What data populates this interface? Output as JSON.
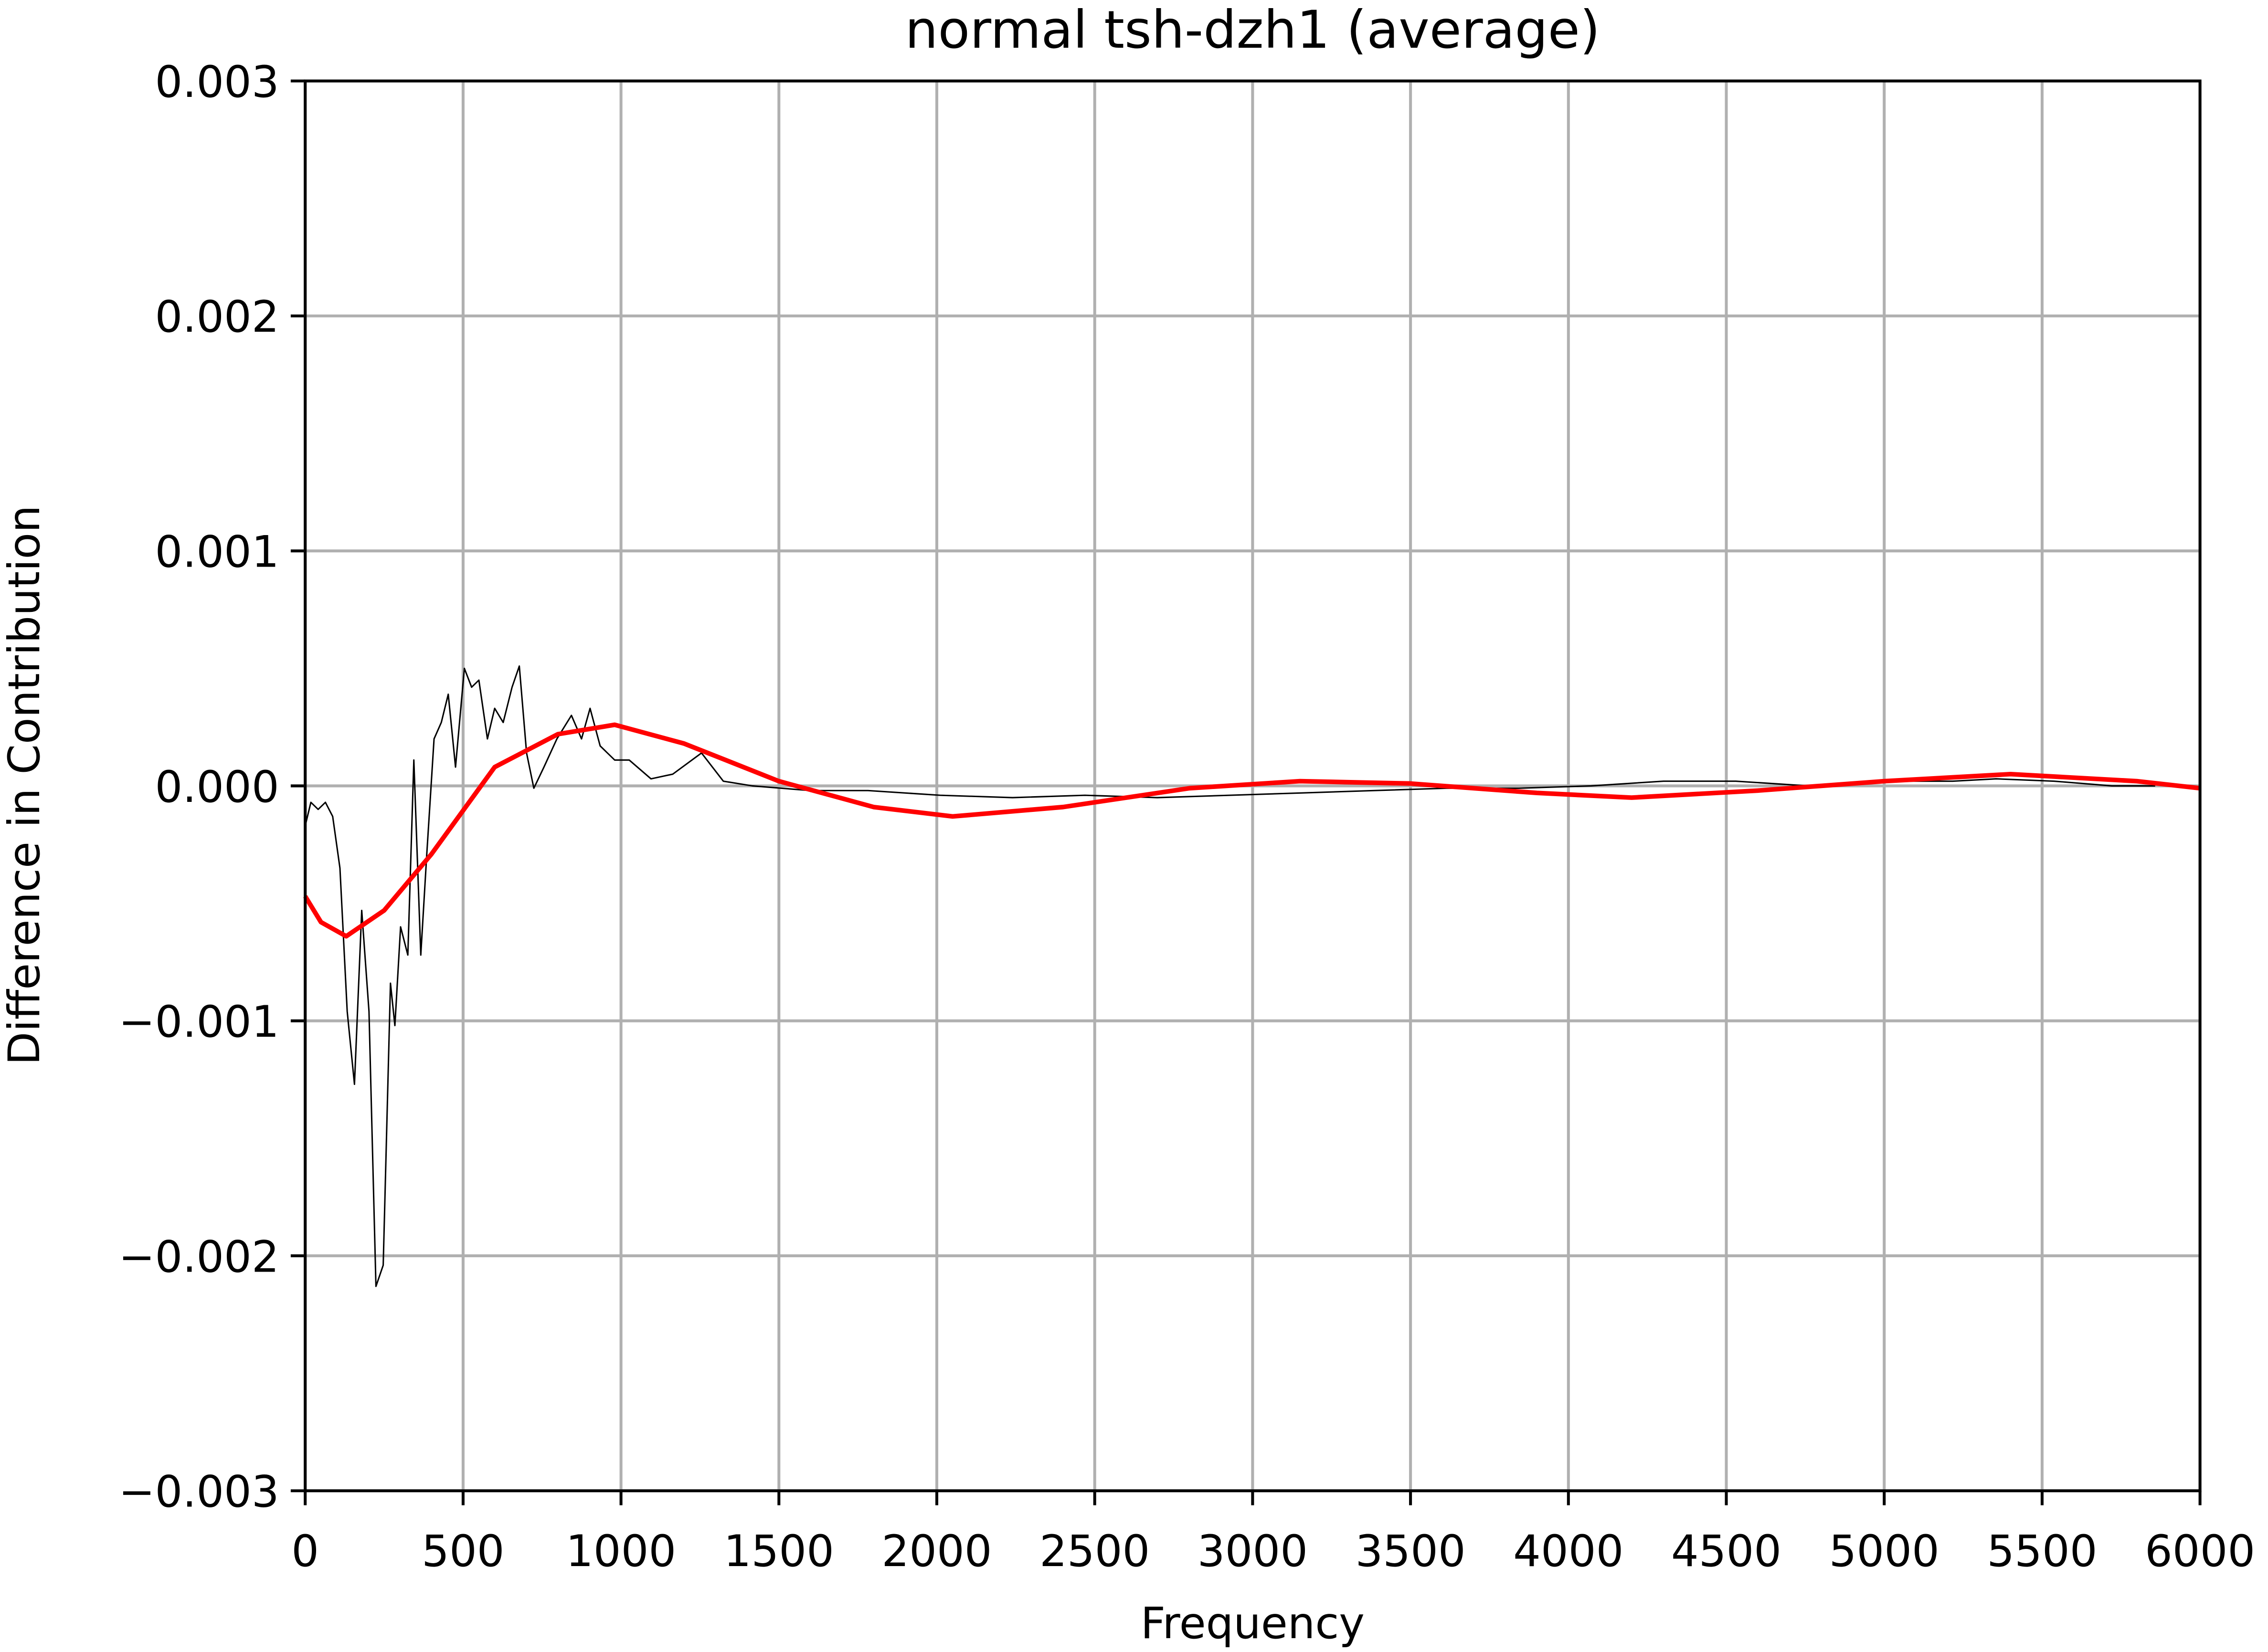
{
  "chart_data": {
    "type": "line",
    "title": "normal tsh-dzh1 (average)",
    "xlabel": "Frequency",
    "ylabel": "Difference in Contribution",
    "xlim": [
      0,
      6000
    ],
    "xticks": [
      0,
      500,
      1000,
      1500,
      2000,
      2500,
      3000,
      3500,
      4000,
      4500,
      5000,
      5500,
      6000
    ],
    "ylim": [
      -0.003,
      0.003
    ],
    "yticks": [
      {
        "value": -0.003,
        "label": "−0.003"
      },
      {
        "value": -0.002,
        "label": "−0.002"
      },
      {
        "value": -0.001,
        "label": "−0.001"
      },
      {
        "value": 0,
        "label": "0.000"
      },
      0.001,
      0.002,
      0.003
    ],
    "grid": true,
    "series": [
      {
        "color": "#000000",
        "line_width": 1,
        "x": [
          0,
          18,
          41,
          64,
          87,
          110,
          133,
          156,
          179,
          202,
          224,
          247,
          270,
          284,
          302,
          325,
          344,
          366,
          385,
          408,
          431,
          453,
          476,
          504,
          527,
          550,
          577,
          600,
          627,
          655,
          678,
          701,
          724,
          756,
          797,
          843,
          875,
          902,
          934,
          980,
          1026,
          1095,
          1164,
          1255,
          1324,
          1416,
          1508,
          1599,
          1782,
          2011,
          2240,
          2469,
          2698,
          2927,
          3156,
          3385,
          3614,
          3843,
          4072,
          4301,
          4530,
          4759,
          4988,
          5217,
          5354,
          5538,
          5721,
          5858
        ],
        "values": [
          -0.00017,
          -7e-05,
          -0.0001,
          -7e-05,
          -0.00013,
          -0.00035,
          -0.00096,
          -0.00127,
          -0.00053,
          -0.00096,
          -0.00213,
          -0.00204,
          -0.00084,
          -0.00102,
          -0.0006,
          -0.00072,
          0.00011,
          -0.00072,
          -0.00029,
          0.0002,
          0.00027,
          0.00039,
          8e-05,
          0.0005,
          0.00042,
          0.00045,
          0.0002,
          0.00033,
          0.00027,
          0.00042,
          0.00051,
          0.00014,
          -1e-05,
          8e-05,
          0.0002,
          0.0003,
          0.0002,
          0.00033,
          0.00017,
          0.00011,
          0.00011,
          3e-05,
          5e-05,
          0.00014,
          2e-05,
          0,
          -1e-05,
          -2e-05,
          -2e-05,
          -4e-05,
          -5e-05,
          -4e-05,
          -5e-05,
          -4e-05,
          -3e-05,
          -2e-05,
          -1e-05,
          -1e-05,
          0,
          2e-05,
          2e-05,
          0,
          2e-05,
          2e-05,
          3e-05,
          2e-05,
          0,
          0
        ]
      },
      {
        "color": "#ff0000",
        "line_width": 3.2,
        "x": [
          0,
          50,
          130,
          250,
          400,
          600,
          800,
          980,
          1200,
          1500,
          1800,
          2050,
          2400,
          2800,
          3150,
          3500,
          3900,
          4200,
          4600,
          5000,
          5400,
          5800,
          6000
        ],
        "values": [
          -0.00047,
          -0.00058,
          -0.00064,
          -0.00053,
          -0.00029,
          8e-05,
          0.00022,
          0.00026,
          0.00018,
          2e-05,
          -9e-05,
          -0.00013,
          -9e-05,
          -1e-05,
          2e-05,
          1e-05,
          -3e-05,
          -5e-05,
          -2e-05,
          2e-05,
          5e-05,
          2e-05,
          -1e-05
        ]
      }
    ]
  }
}
